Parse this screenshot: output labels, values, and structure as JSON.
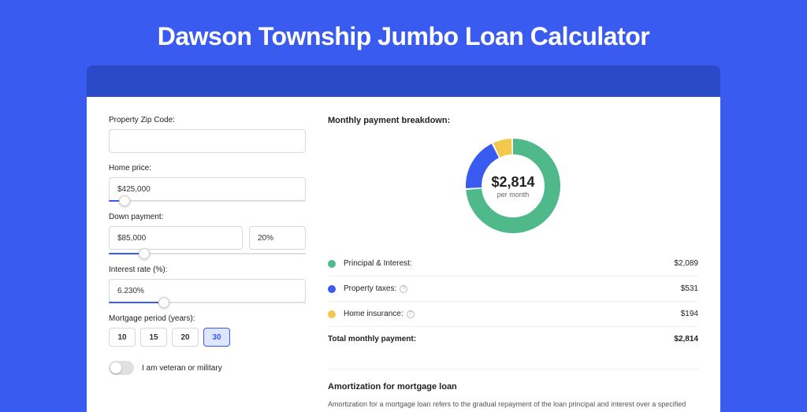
{
  "title": "Dawson Township Jumbo Loan Calculator",
  "form": {
    "zip_label": "Property Zip Code:",
    "zip_value": "",
    "home_price_label": "Home price:",
    "home_price_value": "$425,000",
    "home_price_slider_pct": 8,
    "down_label": "Down payment:",
    "down_amount": "$85,000",
    "down_pct": "20%",
    "down_slider_pct": 18,
    "rate_label": "Interest rate (%):",
    "rate_value": "6.230%",
    "rate_slider_pct": 28,
    "period_label": "Mortgage period (years):",
    "periods": [
      "10",
      "15",
      "20",
      "30"
    ],
    "period_active": 3,
    "veteran_label": "I am veteran or military",
    "veteran_on": false
  },
  "breakdown": {
    "heading": "Monthly payment breakdown:",
    "center_amount": "$2,814",
    "center_sub": "per month",
    "items": [
      {
        "label": "Principal & Interest:",
        "value": "$2,089",
        "color": "#4fb98a",
        "pct": 74.2,
        "has_info": false
      },
      {
        "label": "Property taxes:",
        "value": "$531",
        "color": "#3a5bef",
        "pct": 18.9,
        "has_info": true
      },
      {
        "label": "Home insurance:",
        "value": "$194",
        "color": "#f3c94b",
        "pct": 6.9,
        "has_info": true
      }
    ],
    "total_label": "Total monthly payment:",
    "total_value": "$2,814"
  },
  "amortization": {
    "heading": "Amortization for mortgage loan",
    "text": "Amortization for a mortgage loan refers to the gradual repayment of the loan principal and interest over a specified"
  },
  "style": {
    "donut_radius": 50,
    "donut_stroke": 20,
    "donut_gap_deg": 2,
    "donut_start_deg": -90
  }
}
